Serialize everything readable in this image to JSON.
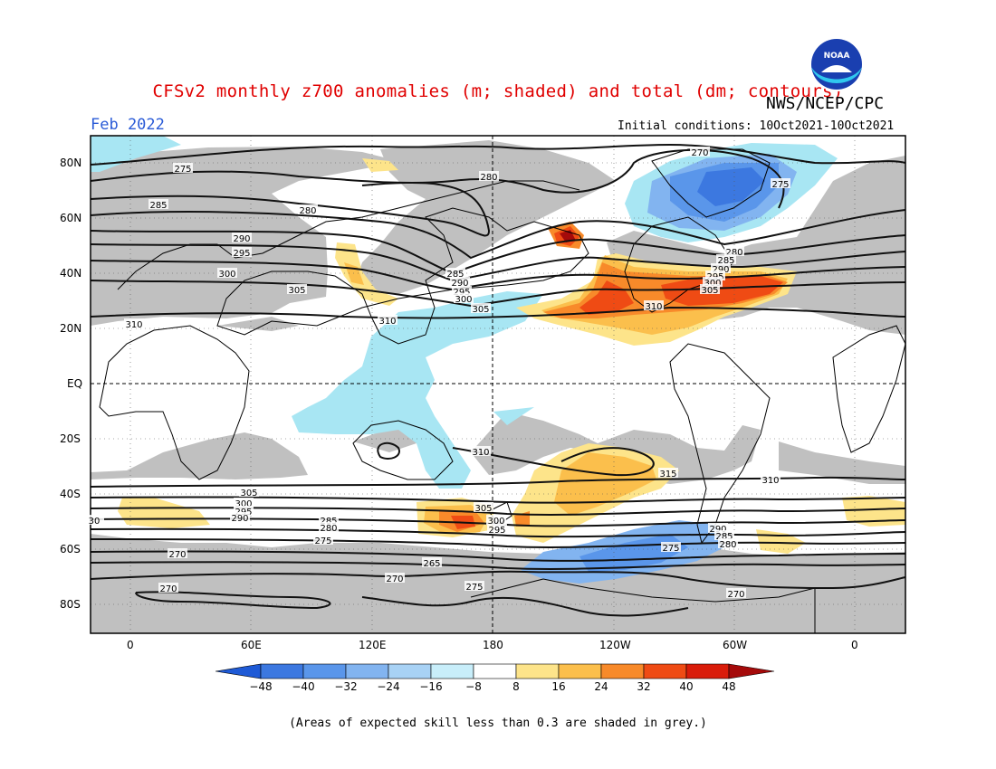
{
  "title": "CFSv2 monthly z700 anomalies (m; shaded) and total (dm; contours)",
  "agency": "NWS/NCEP/CPC",
  "period": "Feb 2022",
  "initial_conditions": "Initial conditions: 10Oct2021-10Oct2021",
  "footnote": "(Areas of expected skill less than 0.3 are shaded in grey.)",
  "logo_text": "NOAA",
  "latitude_labels": [
    "80N",
    "60N",
    "40N",
    "20N",
    "EQ",
    "20S",
    "40S",
    "60S",
    "80S"
  ],
  "longitude_labels": [
    "0",
    "60E",
    "120E",
    "180",
    "120W",
    "60W",
    "0"
  ],
  "colorbar": {
    "ticks": [
      "−48",
      "−40",
      "−32",
      "−24",
      "−16",
      "−8",
      "8",
      "16",
      "24",
      "32",
      "40",
      "48"
    ],
    "colors": [
      "#1e5ad6",
      "#3c78e0",
      "#5a96ea",
      "#82b4f0",
      "#a8d2f5",
      "#c8eefa",
      "#ffffff",
      "#fde48a",
      "#fbbf4c",
      "#f88a2a",
      "#ef4b14",
      "#d91c0a",
      "#a50a0a"
    ]
  },
  "contour_labels": [
    "275",
    "270",
    "280",
    "275",
    "285",
    "280",
    "290",
    "295",
    "300",
    "305",
    "285",
    "290",
    "295",
    "300",
    "305",
    "310",
    "310",
    "280",
    "285",
    "290",
    "295",
    "300",
    "305",
    "310",
    "275",
    "315",
    "310",
    "310",
    "305",
    "300",
    "295",
    "290",
    "285",
    "280",
    "275",
    "305",
    "300",
    "295",
    "290",
    "285",
    "280",
    "270",
    "270",
    "270",
    "265",
    "275",
    "270",
    "30"
  ]
}
